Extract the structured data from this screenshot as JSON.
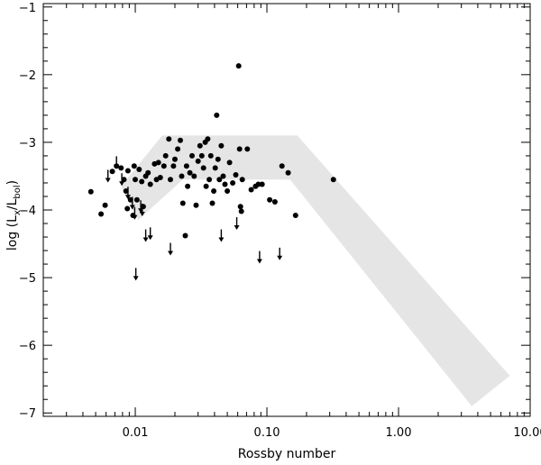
{
  "chart_data": {
    "type": "scatter",
    "title": "",
    "xlabel": "Rossby number",
    "ylabel": {
      "prefix": "log (L",
      "sub1": "x",
      "mid": "/L",
      "sub2": "bol",
      "suffix": ")"
    },
    "x_scale": "log",
    "xlim": [
      0.002,
      10.0
    ],
    "ylim": [
      -7.05,
      -0.95
    ],
    "grid": false,
    "x_ticks": [
      {
        "value": 0.01,
        "label": "0.01"
      },
      {
        "value": 0.1,
        "label": "0.10"
      },
      {
        "value": 1.0,
        "label": "1.00"
      },
      {
        "value": 10.0,
        "label": "10.00"
      }
    ],
    "y_ticks": [
      {
        "value": -1,
        "label": "−1"
      },
      {
        "value": -2,
        "label": "−2"
      },
      {
        "value": -3,
        "label": "−3"
      },
      {
        "value": -4,
        "label": "−4"
      },
      {
        "value": -5,
        "label": "−5"
      },
      {
        "value": -6,
        "label": "−6"
      },
      {
        "value": -7,
        "label": "−7"
      }
    ],
    "region_color": "#e5e5e5",
    "marker_color": "#000000",
    "shaded_region": [
      [
        0.0078,
        -3.65
      ],
      [
        0.016,
        -2.9
      ],
      [
        0.17,
        -2.9
      ],
      [
        7.0,
        -6.45
      ],
      [
        3.6,
        -6.9
      ],
      [
        0.15,
        -3.55
      ],
      [
        0.023,
        -3.55
      ],
      [
        0.0105,
        -4.15
      ]
    ],
    "detections": [
      [
        0.0046,
        -3.73
      ],
      [
        0.0055,
        -4.06
      ],
      [
        0.0059,
        -3.93
      ],
      [
        0.0067,
        -3.43
      ],
      [
        0.0072,
        -3.35
      ],
      [
        0.0078,
        -3.38
      ],
      [
        0.0082,
        -3.55
      ],
      [
        0.0085,
        -3.72
      ],
      [
        0.0087,
        -3.98
      ],
      [
        0.0088,
        -3.42
      ],
      [
        0.0092,
        -3.85
      ],
      [
        0.0096,
        -4.08
      ],
      [
        0.0098,
        -3.35
      ],
      [
        0.01,
        -3.55
      ],
      [
        0.0103,
        -3.85
      ],
      [
        0.0107,
        -3.4
      ],
      [
        0.0112,
        -3.58
      ],
      [
        0.0115,
        -3.95
      ],
      [
        0.012,
        -3.5
      ],
      [
        0.0125,
        -3.45
      ],
      [
        0.013,
        -3.62
      ],
      [
        0.014,
        -3.32
      ],
      [
        0.0145,
        -3.55
      ],
      [
        0.015,
        -3.3
      ],
      [
        0.0155,
        -3.52
      ],
      [
        0.0165,
        -3.35
      ],
      [
        0.017,
        -3.2
      ],
      [
        0.018,
        -2.95
      ],
      [
        0.0185,
        -3.55
      ],
      [
        0.0195,
        -3.35
      ],
      [
        0.02,
        -3.25
      ],
      [
        0.021,
        -3.1
      ],
      [
        0.022,
        -2.97
      ],
      [
        0.0225,
        -3.5
      ],
      [
        0.023,
        -3.9
      ],
      [
        0.024,
        -4.38
      ],
      [
        0.0245,
        -3.35
      ],
      [
        0.025,
        -3.65
      ],
      [
        0.026,
        -3.45
      ],
      [
        0.027,
        -3.2
      ],
      [
        0.028,
        -3.5
      ],
      [
        0.029,
        -3.93
      ],
      [
        0.03,
        -3.28
      ],
      [
        0.031,
        -3.05
      ],
      [
        0.032,
        -3.2
      ],
      [
        0.033,
        -3.38
      ],
      [
        0.034,
        -3.0
      ],
      [
        0.0345,
        -3.65
      ],
      [
        0.0355,
        -2.95
      ],
      [
        0.0365,
        -3.55
      ],
      [
        0.0375,
        -3.2
      ],
      [
        0.0385,
        -3.9
      ],
      [
        0.0395,
        -3.72
      ],
      [
        0.0405,
        -3.38
      ],
      [
        0.0415,
        -2.6
      ],
      [
        0.0425,
        -3.25
      ],
      [
        0.0435,
        -3.55
      ],
      [
        0.045,
        -3.05
      ],
      [
        0.0465,
        -3.5
      ],
      [
        0.048,
        -3.62
      ],
      [
        0.05,
        -3.72
      ],
      [
        0.052,
        -3.3
      ],
      [
        0.055,
        -3.6
      ],
      [
        0.058,
        -3.48
      ],
      [
        0.061,
        -1.87
      ],
      [
        0.062,
        -3.1
      ],
      [
        0.063,
        -3.95
      ],
      [
        0.064,
        -4.02
      ],
      [
        0.065,
        -3.55
      ],
      [
        0.071,
        -3.1
      ],
      [
        0.076,
        -3.7
      ],
      [
        0.082,
        -3.65
      ],
      [
        0.086,
        -3.62
      ],
      [
        0.092,
        -3.62
      ],
      [
        0.105,
        -3.85
      ],
      [
        0.115,
        -3.88
      ],
      [
        0.13,
        -3.35
      ],
      [
        0.145,
        -3.45
      ],
      [
        0.165,
        -4.08
      ],
      [
        0.32,
        -3.55
      ]
    ],
    "upper_limits": [
      [
        0.0062,
        -3.5
      ],
      [
        0.0072,
        -3.3
      ],
      [
        0.0079,
        -3.55
      ],
      [
        0.0088,
        -3.75
      ],
      [
        0.0095,
        -3.9
      ],
      [
        0.0099,
        -4.05
      ],
      [
        0.011,
        -3.95
      ],
      [
        0.0113,
        -4.0
      ],
      [
        0.012,
        -4.38
      ],
      [
        0.013,
        -4.35
      ],
      [
        0.0101,
        -4.95
      ],
      [
        0.0185,
        -4.58
      ],
      [
        0.045,
        -4.38
      ],
      [
        0.059,
        -4.2
      ],
      [
        0.088,
        -4.7
      ],
      [
        0.125,
        -4.65
      ]
    ]
  }
}
